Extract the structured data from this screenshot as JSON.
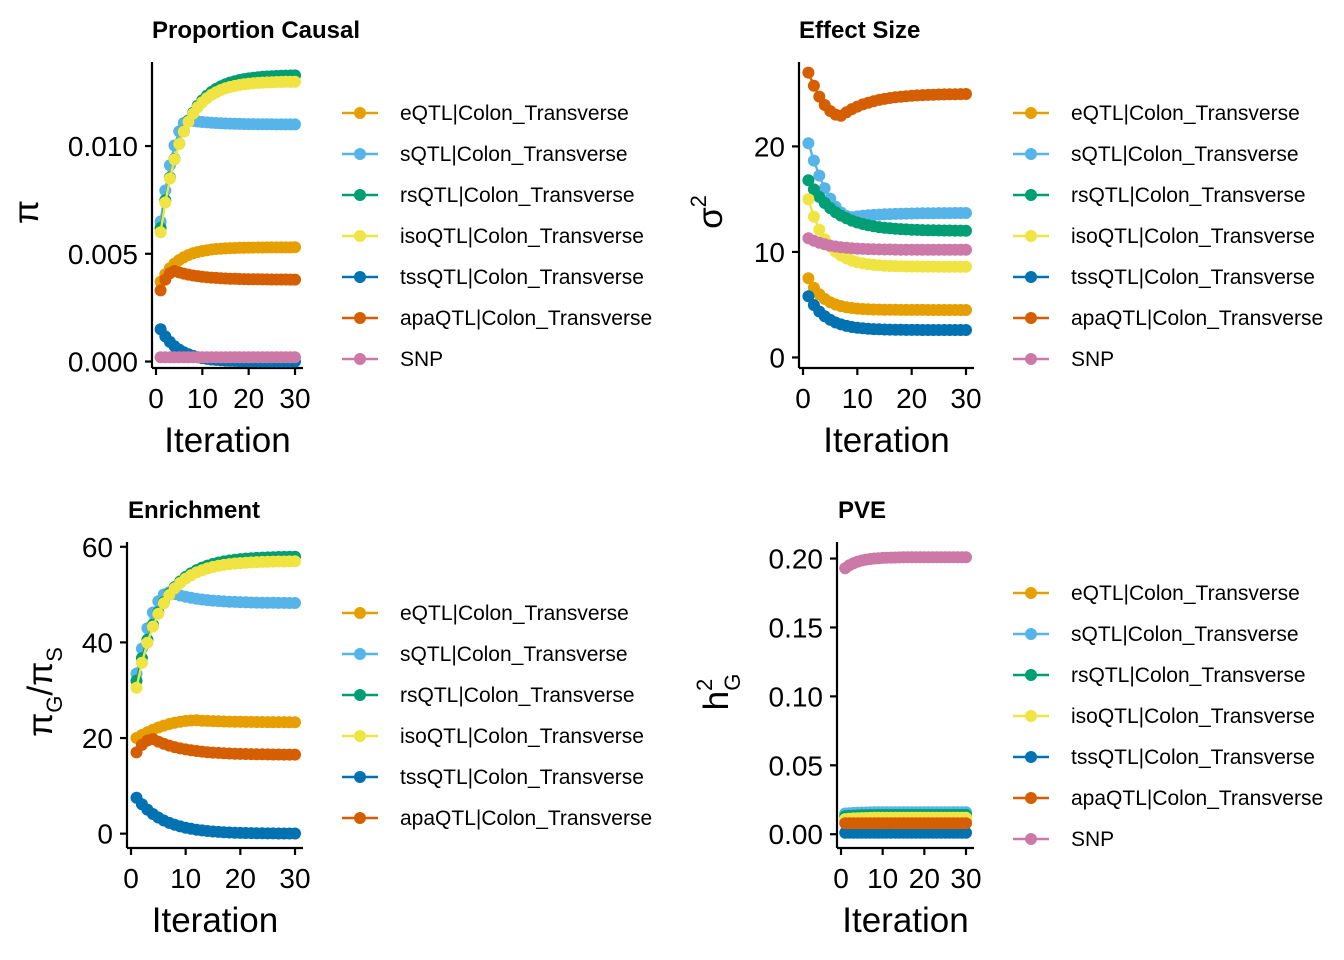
{
  "colors": {
    "eQTL|Colon_Transverse": "#E69F00",
    "sQTL|Colon_Transverse": "#56B4E9",
    "rsQTL|Colon_Transverse": "#009E73",
    "isoQTL|Colon_Transverse": "#F0E442",
    "tssQTL|Colon_Transverse": "#0072B2",
    "apaQTL|Colon_Transverse": "#D55E00",
    "SNP": "#CC79A7"
  },
  "chart_data": [
    {
      "id": "proportion",
      "type": "line",
      "title": "Proportion Causal",
      "xlabel": "Iteration",
      "ylabel": "π",
      "xlim": [
        0,
        30
      ],
      "ylim": [
        -0.0003,
        0.0139
      ],
      "xticks": [
        0,
        10,
        20,
        30
      ],
      "yticks": [
        0.0,
        0.005,
        0.01
      ],
      "ytick_labels": [
        "0.000",
        "0.005",
        "0.010"
      ],
      "legend": [
        "eQTL|Colon_Transverse",
        "sQTL|Colon_Transverse",
        "rsQTL|Colon_Transverse",
        "isoQTL|Colon_Transverse",
        "tssQTL|Colon_Transverse",
        "apaQTL|Colon_Transverse",
        "SNP"
      ],
      "series": [
        {
          "name": "eQTL|Colon_Transverse",
          "start": 0.0037,
          "end": 0.0053,
          "rate": 0.25
        },
        {
          "name": "sQTL|Colon_Transverse",
          "start": 0.0065,
          "end": 0.011,
          "rate": 0.45,
          "peak": 0.0112,
          "peak_iter": 7
        },
        {
          "name": "rsQTL|Colon_Transverse",
          "start": 0.0062,
          "end": 0.0133,
          "rate": 0.2
        },
        {
          "name": "isoQTL|Colon_Transverse",
          "start": 0.006,
          "end": 0.013,
          "rate": 0.22
        },
        {
          "name": "tssQTL|Colon_Transverse",
          "start": 0.0015,
          "end": 0.0,
          "rate": 0.25
        },
        {
          "name": "apaQTL|Colon_Transverse",
          "start": 0.0033,
          "end": 0.0038,
          "rate": 0.35,
          "peak": 0.0042,
          "peak_iter": 4
        },
        {
          "name": "SNP",
          "start": 0.0002,
          "end": 0.0002,
          "rate": 0.3
        }
      ]
    },
    {
      "id": "effect",
      "type": "line",
      "title": "Effect Size",
      "xlabel": "Iteration",
      "ylabel": "σ",
      "ylabel_sup": "2",
      "xlim": [
        0,
        30
      ],
      "ylim": [
        -1,
        28
      ],
      "xticks": [
        0,
        10,
        20,
        30
      ],
      "yticks": [
        0,
        10,
        20
      ],
      "ytick_labels": [
        "0",
        "10",
        "20"
      ],
      "legend": [
        "eQTL|Colon_Transverse",
        "sQTL|Colon_Transverse",
        "rsQTL|Colon_Transverse",
        "isoQTL|Colon_Transverse",
        "tssQTL|Colon_Transverse",
        "apaQTL|Colon_Transverse",
        "SNP"
      ],
      "series": [
        {
          "name": "eQTL|Colon_Transverse",
          "start": 7.5,
          "end": 4.5,
          "rate": 0.35
        },
        {
          "name": "sQTL|Colon_Transverse",
          "start": 20.3,
          "end": 13.7,
          "rate": 0.45,
          "peak": 13.3,
          "peak_iter": 9
        },
        {
          "name": "rsQTL|Colon_Transverse",
          "start": 16.8,
          "end": 12.0,
          "rate": 0.2
        },
        {
          "name": "isoQTL|Colon_Transverse",
          "start": 15.0,
          "end": 8.6,
          "rate": 0.3
        },
        {
          "name": "tssQTL|Colon_Transverse",
          "start": 5.8,
          "end": 2.6,
          "rate": 0.3
        },
        {
          "name": "apaQTL|Colon_Transverse",
          "start": 27.0,
          "end": 25.0,
          "rate": 0.3,
          "peak": 22.9,
          "peak_iter": 7
        },
        {
          "name": "SNP",
          "start": 11.3,
          "end": 10.2,
          "rate": 0.25
        }
      ]
    },
    {
      "id": "enrichment",
      "type": "line",
      "title": "Enrichment",
      "xlabel": "Iteration",
      "ylabel": "π",
      "ylabel_sub": "G",
      "ylabel_mid": "/π",
      "ylabel_sub2": "S",
      "xlim": [
        0,
        30
      ],
      "ylim": [
        -3,
        61
      ],
      "xticks": [
        0,
        10,
        20,
        30
      ],
      "yticks": [
        0,
        20,
        40,
        60
      ],
      "ytick_labels": [
        "0",
        "20",
        "40",
        "60"
      ],
      "legend": [
        "eQTL|Colon_Transverse",
        "sQTL|Colon_Transverse",
        "rsQTL|Colon_Transverse",
        "isoQTL|Colon_Transverse",
        "tssQTL|Colon_Transverse",
        "apaQTL|Colon_Transverse"
      ],
      "series": [
        {
          "name": "eQTL|Colon_Transverse",
          "start": 20.0,
          "end": 23.3,
          "rate": 0.25,
          "peak": 23.7,
          "peak_iter": 12
        },
        {
          "name": "sQTL|Colon_Transverse",
          "start": 33.5,
          "end": 48.2,
          "rate": 0.45,
          "peak": 50.5,
          "peak_iter": 7
        },
        {
          "name": "rsQTL|Colon_Transverse",
          "start": 32.0,
          "end": 58.0,
          "rate": 0.2
        },
        {
          "name": "isoQTL|Colon_Transverse",
          "start": 30.5,
          "end": 57.0,
          "rate": 0.22
        },
        {
          "name": "tssQTL|Colon_Transverse",
          "start": 7.5,
          "end": 0.0,
          "rate": 0.2
        },
        {
          "name": "apaQTL|Colon_Transverse",
          "start": 17.0,
          "end": 16.5,
          "rate": 0.3,
          "peak": 19.8,
          "peak_iter": 4
        }
      ]
    },
    {
      "id": "pve",
      "type": "line",
      "title": "PVE",
      "xlabel": "Iteration",
      "ylabel": "h",
      "ylabel_sup": "2",
      "ylabel_sub": "G",
      "xlim": [
        0,
        30
      ],
      "ylim": [
        -0.01,
        0.212
      ],
      "xticks": [
        0,
        10,
        20,
        30
      ],
      "yticks": [
        0.0,
        0.05,
        0.1,
        0.15,
        0.2
      ],
      "ytick_labels": [
        "0.00",
        "0.05",
        "0.10",
        "0.15",
        "0.20"
      ],
      "legend": [
        "eQTL|Colon_Transverse",
        "sQTL|Colon_Transverse",
        "rsQTL|Colon_Transverse",
        "isoQTL|Colon_Transverse",
        "tssQTL|Colon_Transverse",
        "apaQTL|Colon_Transverse",
        "SNP"
      ],
      "series": [
        {
          "name": "eQTL|Colon_Transverse",
          "start": 0.01,
          "end": 0.01,
          "rate": 0.3
        },
        {
          "name": "sQTL|Colon_Transverse",
          "start": 0.015,
          "end": 0.016,
          "rate": 0.3
        },
        {
          "name": "rsQTL|Colon_Transverse",
          "start": 0.013,
          "end": 0.014,
          "rate": 0.3
        },
        {
          "name": "isoQTL|Colon_Transverse",
          "start": 0.011,
          "end": 0.012,
          "rate": 0.3
        },
        {
          "name": "tssQTL|Colon_Transverse",
          "start": 0.001,
          "end": 0.001,
          "rate": 0.3
        },
        {
          "name": "apaQTL|Colon_Transverse",
          "start": 0.008,
          "end": 0.008,
          "rate": 0.3
        },
        {
          "name": "SNP",
          "start": 0.193,
          "end": 0.201,
          "rate": 0.3
        }
      ]
    }
  ]
}
